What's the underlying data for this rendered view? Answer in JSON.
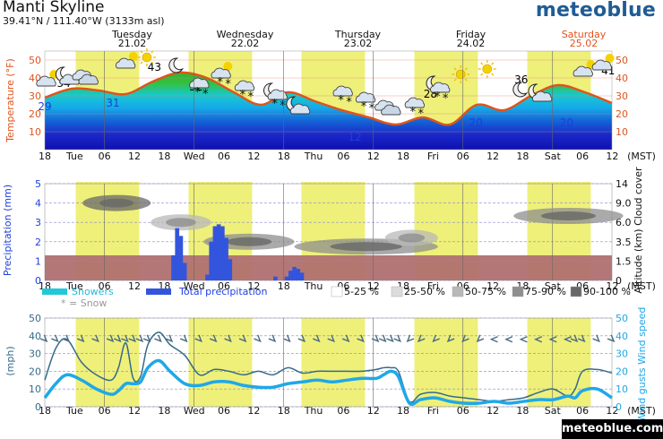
{
  "header": {
    "title": "Manti Skyline",
    "coords": "39.41°N / 111.40°W (3133m asl)",
    "brand": "meteoblue",
    "footer": "meteoblue.com"
  },
  "days": [
    {
      "name": "Tuesday",
      "date": "21.02"
    },
    {
      "name": "Wednesday",
      "date": "22.02"
    },
    {
      "name": "Thursday",
      "date": "23.02"
    },
    {
      "name": "Friday",
      "date": "24.02"
    },
    {
      "name": "Saturday",
      "date": "25.02",
      "highlight": true
    }
  ],
  "time_labels": [
    "18",
    "Tue",
    "06",
    "12",
    "18",
    "Wed",
    "06",
    "12",
    "18",
    "Thu",
    "06",
    "12",
    "18",
    "Fri",
    "06",
    "12",
    "18",
    "Sat",
    "06",
    "12"
  ],
  "time_unit": "(MST)",
  "colors": {
    "daylight": "#eef07a",
    "temp_line": "#e0541c",
    "precip": "#3355dd",
    "showers": "#22c8d8",
    "snow": "#aaaaaa",
    "wind_speed": "#1fa8e8",
    "wind_gust": "#356a8a",
    "ground": "#b07070",
    "saturday": "#e0541c"
  },
  "chart_data": [
    {
      "type": "area",
      "panel": "temperature",
      "ylabel": "Temperature (°F)",
      "ylim": [
        0,
        55
      ],
      "yticks": [
        10,
        20,
        30,
        40,
        50
      ],
      "x_hours": [
        0,
        6,
        12,
        18,
        24,
        30,
        36,
        42,
        48,
        54,
        60,
        66,
        72,
        78,
        84,
        90,
        96,
        102,
        108,
        114,
        120,
        126
      ],
      "temperature": [
        29,
        34,
        33,
        31,
        38,
        43,
        40,
        32,
        25,
        32,
        27,
        22,
        18,
        14,
        18,
        14,
        25,
        22,
        30,
        36,
        32,
        26
      ],
      "value_labels": [
        {
          "hour": 0,
          "text": "29",
          "kind": "min"
        },
        {
          "hour": 5,
          "text": "34",
          "kind": "max"
        },
        {
          "hour": 18,
          "text": "31",
          "kind": "min"
        },
        {
          "hour": 29,
          "text": "43",
          "kind": "max"
        },
        {
          "hour": 40,
          "text": "32",
          "kind": "max"
        },
        {
          "hour": 82,
          "text": "12",
          "kind": "min"
        },
        {
          "hour": 102,
          "text": "28",
          "kind": "max"
        },
        {
          "hour": 114,
          "text": "20",
          "kind": "min"
        },
        {
          "hour": 126,
          "text": "36",
          "kind": "max"
        },
        {
          "hour": 138,
          "text": "20",
          "kind": "min"
        },
        {
          "hour": 149,
          "text": "41",
          "kind": "max"
        }
      ],
      "symbols": [
        {
          "hour": 1,
          "icon": "sun-cloud-icon"
        },
        {
          "hour": 6,
          "icon": "moon-cloud-icon"
        },
        {
          "hour": 11,
          "icon": "cloud-icon"
        },
        {
          "hour": 22,
          "icon": "sun-cloud-icon"
        },
        {
          "hour": 27,
          "icon": "sun-icon"
        },
        {
          "hour": 35,
          "icon": "moon-icon"
        },
        {
          "hour": 41,
          "icon": "snow-cloud-icon"
        },
        {
          "hour": 47,
          "icon": "sun-snow-icon"
        },
        {
          "hour": 53,
          "icon": "snow-cloud-icon"
        },
        {
          "hour": 61,
          "icon": "moon-snow-icon"
        },
        {
          "hour": 67,
          "icon": "moon-cloud-icon"
        },
        {
          "hour": 79,
          "icon": "snow-cloud-icon"
        },
        {
          "hour": 85,
          "icon": "snow-cloud-icon"
        },
        {
          "hour": 91,
          "icon": "cloud-icon"
        },
        {
          "hour": 98,
          "icon": "snow-cloud-icon"
        },
        {
          "hour": 104,
          "icon": "moon-snow-icon"
        },
        {
          "hour": 110,
          "icon": "sun-icon"
        },
        {
          "hour": 117,
          "icon": "sun-icon"
        },
        {
          "hour": 126,
          "icon": "moon-icon"
        },
        {
          "hour": 131,
          "icon": "moon-cloud-icon"
        },
        {
          "hour": 143,
          "icon": "sun-cloud-icon"
        },
        {
          "hour": 148,
          "icon": "sun-cloud-icon"
        }
      ]
    },
    {
      "type": "bar",
      "panel": "precipitation",
      "ylabel": "Precipitation (mm)",
      "ylim": [
        0,
        5
      ],
      "yticks": [
        0,
        1,
        2,
        3,
        4,
        5
      ],
      "right_label": "Altitude (km) Cloud cover",
      "right_ticks": [
        "0",
        "1.5",
        "3.5",
        "6.0",
        "9.0",
        "14"
      ],
      "total_precipitation": [
        {
          "hour": 34,
          "value": 1.3
        },
        {
          "hour": 35,
          "value": 2.7
        },
        {
          "hour": 36,
          "value": 2.3
        },
        {
          "hour": 37,
          "value": 0.9
        },
        {
          "hour": 43,
          "value": 0.3
        },
        {
          "hour": 44,
          "value": 2.0
        },
        {
          "hour": 45,
          "value": 2.8
        },
        {
          "hour": 46,
          "value": 2.9
        },
        {
          "hour": 47,
          "value": 2.8
        },
        {
          "hour": 48,
          "value": 2.2
        },
        {
          "hour": 49,
          "value": 1.1
        },
        {
          "hour": 61,
          "value": 0.2
        },
        {
          "hour": 64,
          "value": 0.2
        },
        {
          "hour": 65,
          "value": 0.5
        },
        {
          "hour": 66,
          "value": 0.7
        },
        {
          "hour": 67,
          "value": 0.6
        },
        {
          "hour": 68,
          "value": 0.4
        }
      ],
      "cloud_layers": [
        {
          "start": 10,
          "end": 28,
          "alt_km": 9.0,
          "level": 4
        },
        {
          "start": 28,
          "end": 44,
          "alt_km": 6.0,
          "level": 2
        },
        {
          "start": 42,
          "end": 66,
          "alt_km": 3.5,
          "level": 3
        },
        {
          "start": 66,
          "end": 104,
          "alt_km": 3.0,
          "level": 3
        },
        {
          "start": 90,
          "end": 104,
          "alt_km": 4.0,
          "level": 2
        },
        {
          "start": 124,
          "end": 153,
          "alt_km": 7.0,
          "level": 3
        }
      ],
      "legend": {
        "showers": "Showers",
        "total": "Total precipitation",
        "snow_note": "* = Snow",
        "cover": [
          "5-25 %",
          "25-50 %",
          "50-75 %",
          "75-90 %",
          "90-100 %"
        ]
      }
    },
    {
      "type": "line",
      "panel": "wind",
      "ylabel": "(mph)",
      "ylim": [
        0,
        50
      ],
      "yticks": [
        0,
        10,
        20,
        30,
        40,
        50
      ],
      "right_label": "Wind gusts Wind speed",
      "x_hours": [
        0,
        3,
        6,
        10,
        14,
        18,
        20,
        22,
        24,
        26,
        28,
        31,
        34,
        38,
        42,
        46,
        50,
        54,
        58,
        62,
        66,
        70,
        74,
        78,
        82,
        86,
        90,
        92,
        94,
        96,
        99,
        102,
        106,
        110,
        114,
        118,
        122,
        126,
        130,
        134,
        138,
        142,
        144,
        146,
        150,
        154
      ],
      "wind_gusts": [
        15,
        33,
        38,
        25,
        18,
        15,
        22,
        36,
        16,
        17,
        35,
        42,
        35,
        29,
        18,
        21,
        20,
        18,
        20,
        18,
        22,
        19,
        20,
        20,
        20,
        20,
        21,
        22,
        22,
        20,
        3,
        7,
        8,
        6,
        5,
        4,
        3,
        4,
        5,
        8,
        10,
        6,
        10,
        20,
        21,
        19
      ],
      "wind_speed": [
        5,
        13,
        18,
        15,
        10,
        7,
        9,
        13,
        13,
        14,
        22,
        26,
        20,
        13,
        12,
        14,
        14,
        12,
        11,
        11,
        13,
        14,
        15,
        14,
        15,
        16,
        16,
        18,
        20,
        17,
        2,
        4,
        5,
        3,
        2,
        2,
        3,
        2,
        3,
        4,
        4,
        6,
        5,
        9,
        10,
        5
      ],
      "wind_direction_deg": [
        315,
        315,
        315,
        315,
        315,
        315,
        315,
        315,
        315,
        315,
        315,
        315,
        315,
        315,
        315,
        315,
        315,
        315,
        315,
        315,
        315,
        315,
        315,
        315,
        315,
        315,
        315,
        315,
        315,
        315,
        45,
        45,
        45,
        45,
        45,
        45,
        90,
        90,
        90,
        90,
        90,
        90,
        315,
        315,
        315,
        315
      ]
    }
  ]
}
